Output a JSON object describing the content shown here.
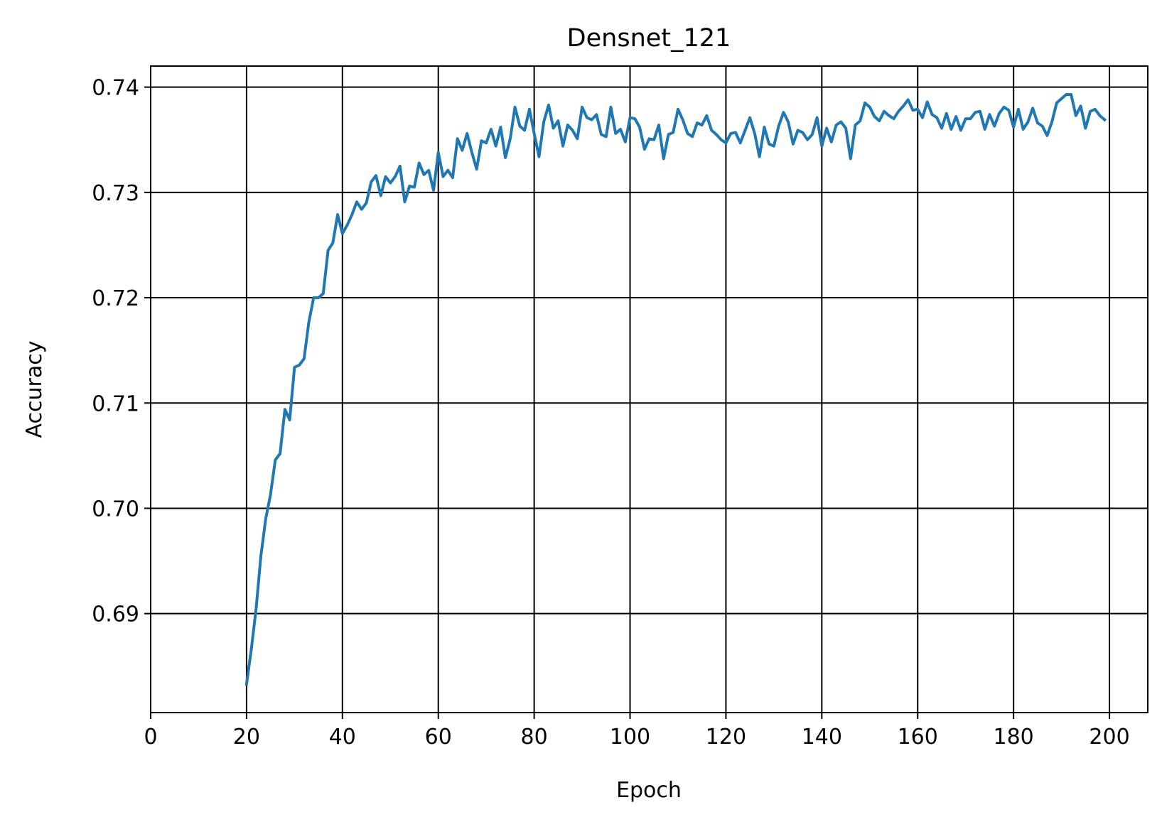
{
  "chart_data": {
    "type": "line",
    "title": "Densnet_121",
    "xlabel": "Epoch",
    "ylabel": "Accuracy",
    "xlim": [
      0,
      208
    ],
    "ylim": [
      0.6806,
      0.742
    ],
    "xticks": [
      0,
      20,
      40,
      60,
      80,
      100,
      120,
      140,
      160,
      180,
      200
    ],
    "yticks": [
      0.69,
      0.7,
      0.71,
      0.72,
      0.73,
      0.74
    ],
    "ytick_labels": [
      "0.69",
      "0.70",
      "0.71",
      "0.72",
      "0.73",
      "0.74"
    ],
    "grid": true,
    "line_color": "#1f77b4",
    "series": [
      {
        "x": [
          20,
          21,
          22,
          23,
          24,
          25,
          26,
          27,
          28,
          29,
          30,
          31,
          32,
          33,
          34,
          35,
          36,
          37,
          38,
          39,
          40,
          41,
          42,
          43,
          44,
          45,
          46,
          47,
          48,
          49,
          50,
          51,
          52,
          53,
          54,
          55,
          56,
          57,
          58,
          59,
          60,
          61,
          62,
          63,
          64,
          65,
          66,
          67,
          68,
          69,
          70,
          71,
          72,
          73,
          74,
          75,
          76,
          77,
          78,
          79,
          80,
          81,
          82,
          83,
          84,
          85,
          86,
          87,
          88,
          89,
          90,
          91,
          92,
          93,
          94,
          95,
          96,
          97,
          98,
          99,
          100,
          101,
          102,
          103,
          104,
          105,
          106,
          107,
          108,
          109,
          110,
          111,
          112,
          113,
          114,
          115,
          116,
          117,
          118,
          119,
          120,
          121,
          122,
          123,
          124,
          125,
          126,
          127,
          128,
          129,
          130,
          131,
          132,
          133,
          134,
          135,
          136,
          137,
          138,
          139,
          140,
          141,
          142,
          143,
          144,
          145,
          146,
          147,
          148,
          149,
          150,
          151,
          152,
          153,
          154,
          155,
          156,
          157,
          158,
          159,
          160,
          161,
          162,
          163,
          164,
          165,
          166,
          167,
          168,
          169,
          170,
          171,
          172,
          173,
          174,
          175,
          176,
          177,
          178,
          179,
          180,
          181,
          182,
          183,
          184,
          185,
          186,
          187,
          188,
          189,
          190,
          191,
          192,
          193,
          194,
          195,
          196,
          197,
          198,
          199
        ],
        "y": [
          0.6833,
          0.6866,
          0.6905,
          0.6955,
          0.699,
          0.7013,
          0.7046,
          0.7052,
          0.7094,
          0.7084,
          0.7134,
          0.7136,
          0.7142,
          0.7177,
          0.72,
          0.72,
          0.7204,
          0.7245,
          0.7252,
          0.7279,
          0.7261,
          0.7269,
          0.7279,
          0.7291,
          0.7284,
          0.729,
          0.731,
          0.7316,
          0.7297,
          0.7315,
          0.7309,
          0.7315,
          0.7325,
          0.7291,
          0.7306,
          0.7305,
          0.7328,
          0.7317,
          0.7321,
          0.7302,
          0.7338,
          0.7315,
          0.7321,
          0.7314,
          0.7351,
          0.734,
          0.7356,
          0.7338,
          0.7322,
          0.7349,
          0.7347,
          0.736,
          0.7344,
          0.7362,
          0.7333,
          0.7351,
          0.7381,
          0.7363,
          0.7359,
          0.7379,
          0.7356,
          0.7334,
          0.7367,
          0.7383,
          0.7361,
          0.7368,
          0.7344,
          0.7364,
          0.7359,
          0.7351,
          0.7381,
          0.7371,
          0.7369,
          0.7374,
          0.7355,
          0.7353,
          0.7381,
          0.7356,
          0.736,
          0.7348,
          0.7371,
          0.737,
          0.7362,
          0.7341,
          0.7351,
          0.735,
          0.7364,
          0.7332,
          0.7355,
          0.7357,
          0.7379,
          0.7369,
          0.7356,
          0.7353,
          0.7366,
          0.7364,
          0.7373,
          0.7359,
          0.7355,
          0.735,
          0.7347,
          0.7356,
          0.7357,
          0.7347,
          0.7359,
          0.7371,
          0.7356,
          0.7334,
          0.7362,
          0.7346,
          0.7344,
          0.7363,
          0.7376,
          0.7367,
          0.7346,
          0.7359,
          0.7357,
          0.735,
          0.7355,
          0.7371,
          0.7344,
          0.7361,
          0.7348,
          0.7364,
          0.7367,
          0.7361,
          0.7332,
          0.7364,
          0.7368,
          0.7385,
          0.7381,
          0.7372,
          0.7368,
          0.7377,
          0.7373,
          0.737,
          0.7377,
          0.7382,
          0.7388,
          0.7378,
          0.7379,
          0.7371,
          0.7386,
          0.7374,
          0.7371,
          0.7361,
          0.7375,
          0.736,
          0.7372,
          0.7359,
          0.737,
          0.737,
          0.7376,
          0.7377,
          0.736,
          0.7374,
          0.7363,
          0.7375,
          0.7381,
          0.7378,
          0.7362,
          0.7379,
          0.736,
          0.7367,
          0.738,
          0.7366,
          0.7363,
          0.7354,
          0.7367,
          0.7385,
          0.7389,
          0.7393,
          0.7393,
          0.7373,
          0.7382,
          0.7361,
          0.7377,
          0.7379,
          0.7373,
          0.7369
        ]
      }
    ]
  }
}
